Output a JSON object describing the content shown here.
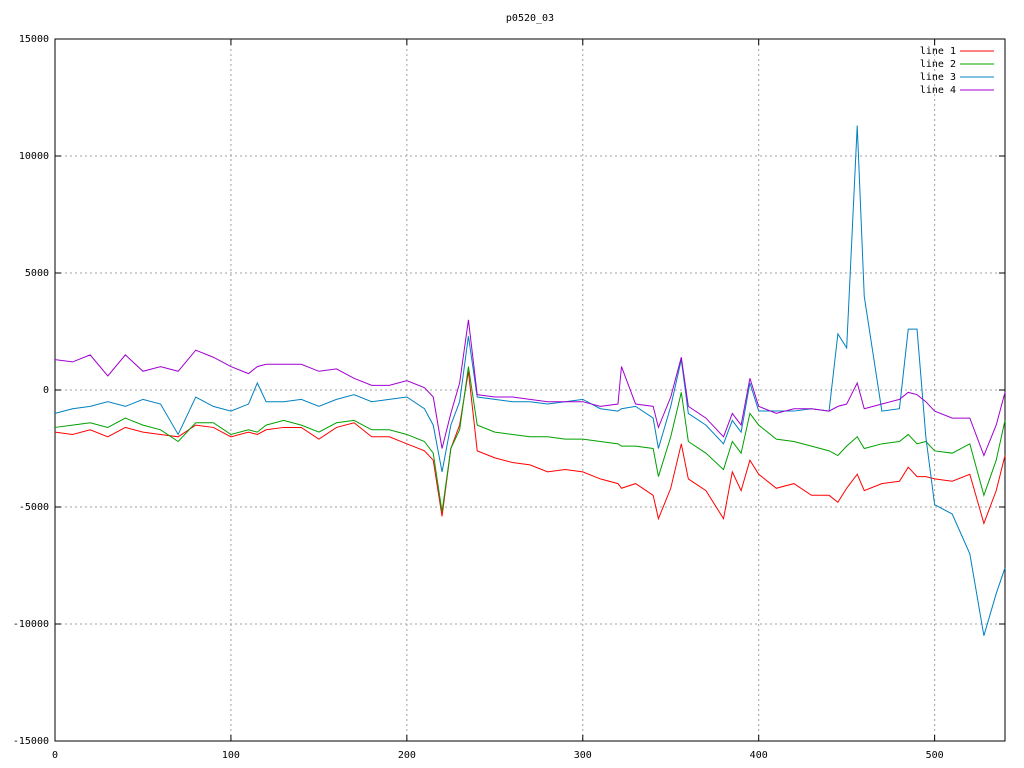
{
  "chart_data": {
    "type": "line",
    "title": "p0520_03",
    "x": [
      0,
      10,
      20,
      30,
      40,
      50,
      60,
      70,
      80,
      90,
      100,
      110,
      115,
      120,
      130,
      140,
      150,
      160,
      170,
      180,
      190,
      200,
      210,
      215,
      220,
      225,
      230,
      235,
      240,
      250,
      260,
      270,
      280,
      290,
      300,
      310,
      320,
      322,
      330,
      340,
      343,
      350,
      356,
      360,
      370,
      380,
      385,
      390,
      395,
      400,
      410,
      420,
      430,
      440,
      445,
      450,
      456,
      460,
      470,
      480,
      485,
      490,
      495,
      500,
      510,
      520,
      528,
      535,
      540
    ],
    "series": [
      {
        "name": "line 1",
        "color": "#ff0000",
        "values": [
          -1800,
          -1900,
          -1700,
          -2000,
          -1600,
          -1800,
          -1900,
          -2000,
          -1500,
          -1600,
          -2000,
          -1800,
          -1900,
          -1700,
          -1600,
          -1600,
          -2100,
          -1600,
          -1400,
          -2000,
          -2000,
          -2300,
          -2600,
          -3000,
          -5400,
          -2500,
          -1500,
          800,
          -2600,
          -2900,
          -3100,
          -3200,
          -3500,
          -3400,
          -3500,
          -3800,
          -4000,
          -4200,
          -4000,
          -4500,
          -5500,
          -4200,
          -2300,
          -3800,
          -4300,
          -5500,
          -3500,
          -4300,
          -3000,
          -3600,
          -4200,
          -4000,
          -4500,
          -4500,
          -4800,
          -4200,
          -3600,
          -4300,
          -4000,
          -3900,
          -3300,
          -3700,
          -3700,
          -3800,
          -3900,
          -3600,
          -5700,
          -4300,
          -2800
        ]
      },
      {
        "name": "line 2",
        "color": "#00a000",
        "values": [
          -1600,
          -1500,
          -1400,
          -1600,
          -1200,
          -1500,
          -1700,
          -2200,
          -1400,
          -1400,
          -1900,
          -1700,
          -1800,
          -1500,
          -1300,
          -1500,
          -1800,
          -1400,
          -1300,
          -1700,
          -1700,
          -1900,
          -2200,
          -2700,
          -5200,
          -2500,
          -1700,
          1000,
          -1500,
          -1800,
          -1900,
          -2000,
          -2000,
          -2100,
          -2100,
          -2200,
          -2300,
          -2400,
          -2400,
          -2500,
          -3700,
          -2000,
          -100,
          -2200,
          -2700,
          -3400,
          -2200,
          -2700,
          -1000,
          -1500,
          -2100,
          -2200,
          -2400,
          -2600,
          -2800,
          -2400,
          -2000,
          -2500,
          -2300,
          -2200,
          -1900,
          -2300,
          -2200,
          -2600,
          -2700,
          -2300,
          -4500,
          -3000,
          -1300
        ]
      },
      {
        "name": "line 3",
        "color": "#0080c0",
        "values": [
          -1000,
          -800,
          -700,
          -500,
          -700,
          -400,
          -600,
          -1900,
          -300,
          -700,
          -900,
          -600,
          300,
          -500,
          -500,
          -400,
          -700,
          -400,
          -200,
          -500,
          -400,
          -300,
          -800,
          -1500,
          -3500,
          -1500,
          -500,
          2300,
          -300,
          -400,
          -500,
          -500,
          -600,
          -500,
          -400,
          -800,
          -900,
          -800,
          -700,
          -1200,
          -2500,
          -700,
          1300,
          -1000,
          -1500,
          -2300,
          -1300,
          -1800,
          300,
          -900,
          -900,
          -900,
          -800,
          -900,
          2400,
          1800,
          11300,
          4000,
          -900,
          -800,
          2600,
          2600,
          -2000,
          -4900,
          -5300,
          -7000,
          -10500,
          -8700,
          -7600
        ]
      },
      {
        "name": "line 4",
        "color": "#a000d0",
        "values": [
          1300,
          1200,
          1500,
          600,
          1500,
          800,
          1000,
          800,
          1700,
          1400,
          1000,
          700,
          1000,
          1100,
          1100,
          1100,
          800,
          900,
          500,
          200,
          200,
          400,
          100,
          -300,
          -2500,
          -1000,
          300,
          3000,
          -200,
          -300,
          -300,
          -400,
          -500,
          -500,
          -500,
          -700,
          -600,
          1000,
          -600,
          -700,
          -1600,
          -300,
          1400,
          -700,
          -1200,
          -2000,
          -1000,
          -1500,
          500,
          -700,
          -1000,
          -800,
          -800,
          -900,
          -700,
          -600,
          300,
          -800,
          -600,
          -400,
          -100,
          -200,
          -500,
          -900,
          -1200,
          -1200,
          -2800,
          -1500,
          -100
        ]
      }
    ],
    "xlim": [
      0,
      540
    ],
    "xticks": [
      0,
      100,
      200,
      300,
      400,
      500
    ],
    "ylim": [
      -15000,
      15000
    ],
    "yticks": [
      -15000,
      -10000,
      -5000,
      0,
      5000,
      10000,
      15000
    ],
    "grid": true,
    "legend": "top-right"
  }
}
